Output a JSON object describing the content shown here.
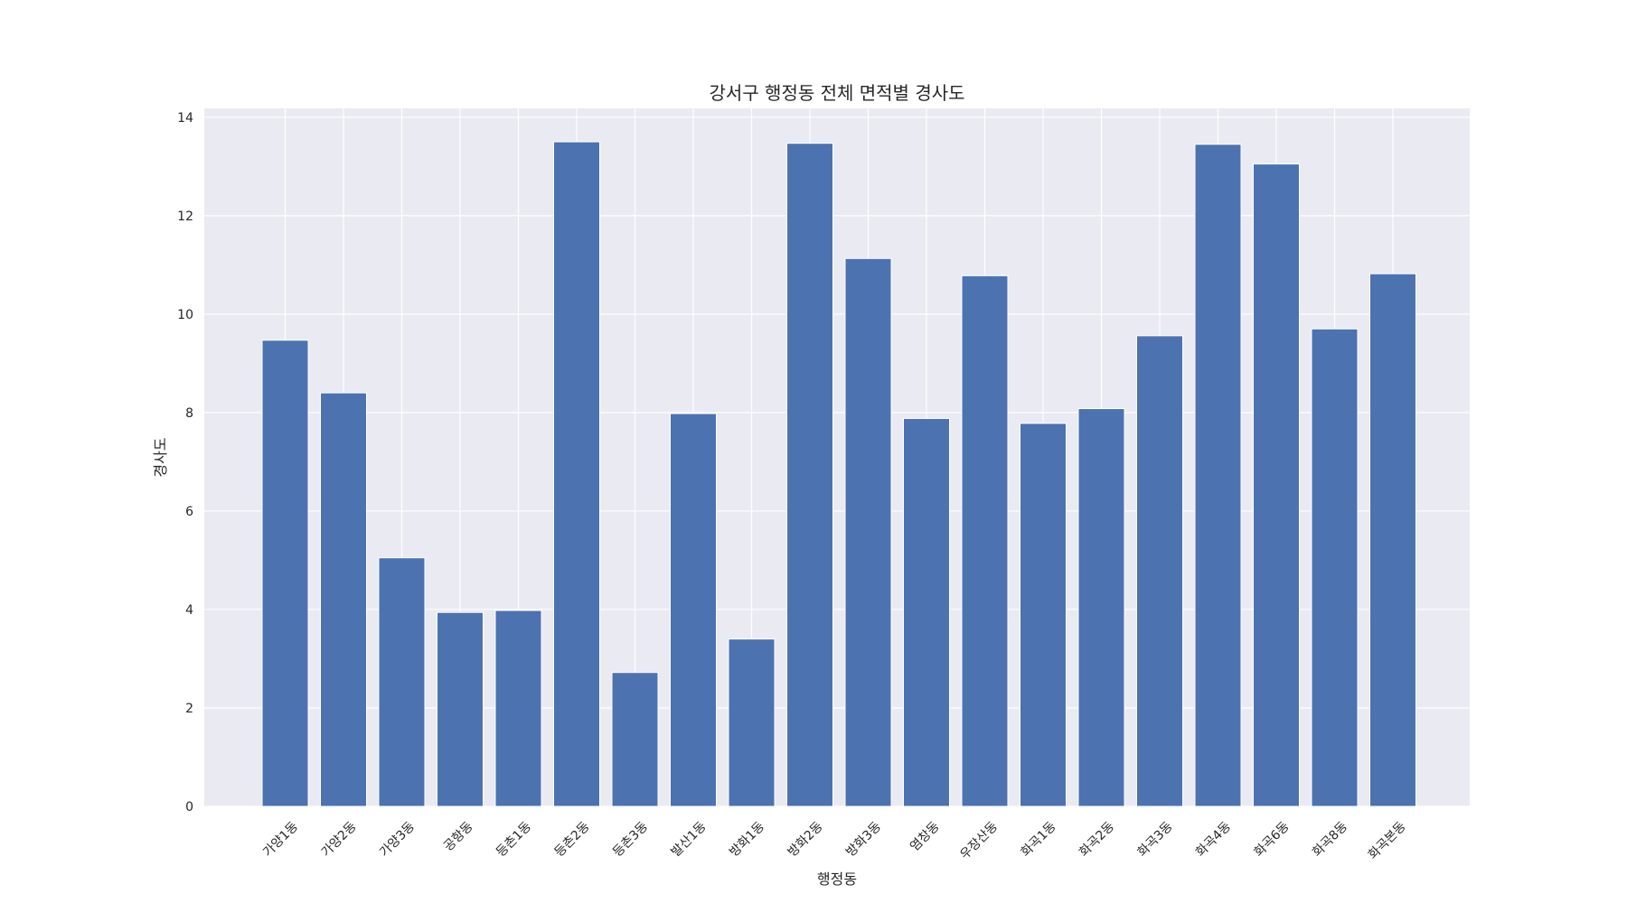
{
  "chart_data": {
    "type": "bar",
    "title": "강서구 행정동 전체 면적별 경사도",
    "xlabel": "행정동",
    "ylabel": "경사도",
    "categories": [
      "가양1동",
      "가양2동",
      "가양3동",
      "공항동",
      "등촌1동",
      "등촌2동",
      "등촌3동",
      "발산1동",
      "방화1동",
      "방화2동",
      "방화3동",
      "염창동",
      "우장산동",
      "화곡1동",
      "화곡2동",
      "화곡3동",
      "화곡4동",
      "화곡6동",
      "화곡8동",
      "화곡본동"
    ],
    "values": [
      9.47,
      8.4,
      5.05,
      3.94,
      3.98,
      13.5,
      2.72,
      7.98,
      3.4,
      13.47,
      11.13,
      7.88,
      10.78,
      7.78,
      8.08,
      9.56,
      13.45,
      13.05,
      9.7,
      10.82
    ],
    "yticks": [
      "0",
      "2",
      "4",
      "6",
      "8",
      "10",
      "12",
      "14"
    ],
    "ylim": [
      0,
      14.18
    ],
    "grid": true,
    "bar_color": "#4c72b0",
    "plot_background": "#eaeaf2",
    "grid_color": "#ffffff"
  }
}
